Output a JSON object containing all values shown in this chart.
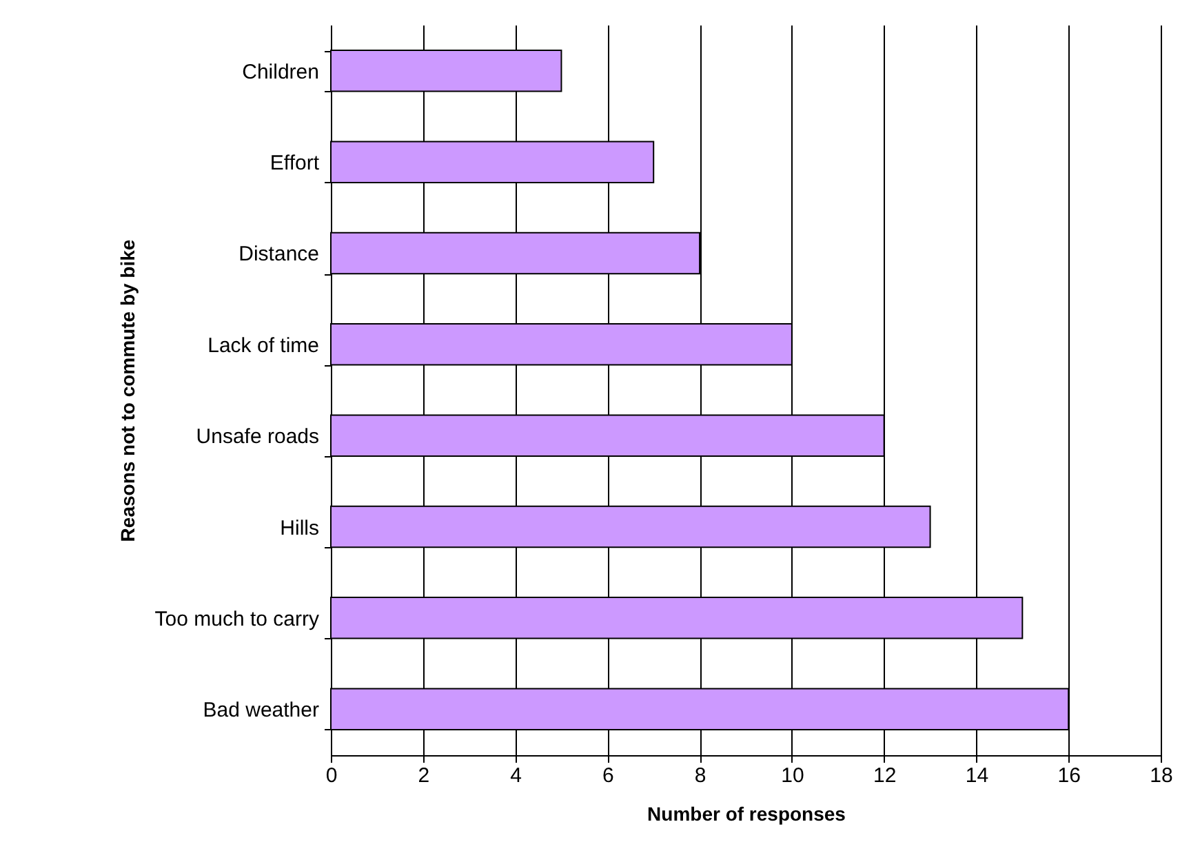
{
  "chart_data": {
    "type": "bar",
    "orientation": "horizontal",
    "xlabel": "Number of responses",
    "ylabel": "Reasons not to commute by bike",
    "categories": [
      "Children",
      "Effort",
      "Distance",
      "Lack of time",
      "Unsafe roads",
      "Hills",
      "Too much to carry",
      "Bad weather"
    ],
    "values": [
      5,
      7,
      8,
      10,
      12,
      13,
      15,
      16
    ],
    "color": "#cc99ff",
    "xlim": [
      0,
      18
    ],
    "xticks": [
      0,
      2,
      4,
      6,
      8,
      10,
      12,
      14,
      16,
      18
    ],
    "grid": "x"
  }
}
